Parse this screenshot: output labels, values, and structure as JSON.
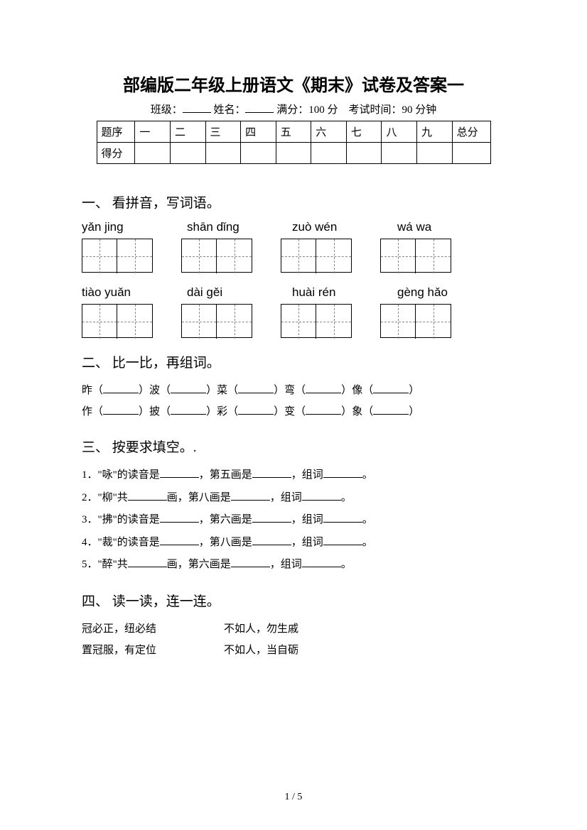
{
  "title": "部编版二年级上册语文《期末》试卷及答案一",
  "meta": {
    "class_label": "班级：",
    "name_label": "姓名：",
    "full_score_label": "满分：",
    "full_score_value": "100 分",
    "duration_label": "考试时间：",
    "duration_value": "90 分钟"
  },
  "score_table": {
    "row_label_1": "题序",
    "row_label_2": "得分",
    "cols": [
      "一",
      "二",
      "三",
      "四",
      "五",
      "六",
      "七",
      "八",
      "九"
    ],
    "total_label": "总分"
  },
  "sections": {
    "s1": {
      "title": "一、 看拼音，写词语。"
    },
    "s2": {
      "title": "二、 比一比，再组词。"
    },
    "s3": {
      "title": "三、 按要求填空。."
    },
    "s4": {
      "title": "四、 读一读，连一连。"
    }
  },
  "pinyin": {
    "row1": [
      "yǎn   jing",
      "shān   dǐng",
      "zuò wén",
      "wá    wa"
    ],
    "row2": [
      "tiào   yuǎn",
      "dài   gěi",
      "huài  rén",
      "gèng hǎo"
    ]
  },
  "q2": {
    "line1_chars": [
      "昨",
      "波",
      "菜",
      "弯",
      "像"
    ],
    "line2_chars": [
      "作",
      "披",
      "彩",
      "变",
      "象"
    ]
  },
  "q3": {
    "items": [
      {
        "n": "1．",
        "pre": "\"咏\"的读音是",
        "mid": "，第五画是",
        "tail": "，组词"
      },
      {
        "n": "2．",
        "pre": "\"柳\"共",
        "mid": "画，第八画是",
        "tail": "，组词"
      },
      {
        "n": "3．",
        "pre": "\"拂\"的读音是",
        "mid": "，第六画是",
        "tail": "，组词"
      },
      {
        "n": "4．",
        "pre": "\"裁\"的读音是",
        "mid": "，第八画是",
        "tail": "，组词"
      },
      {
        "n": "5．",
        "pre": "\"醉\"共",
        "mid": "画，第六画是",
        "tail": "，组词"
      }
    ],
    "period": "。"
  },
  "q4": {
    "rows": [
      {
        "left": "冠必正，纽必结",
        "right": "不如人，勿生戚"
      },
      {
        "left": "置冠服，有定位",
        "right": "不如人，当自砺"
      }
    ]
  },
  "footer": "1  /  5"
}
